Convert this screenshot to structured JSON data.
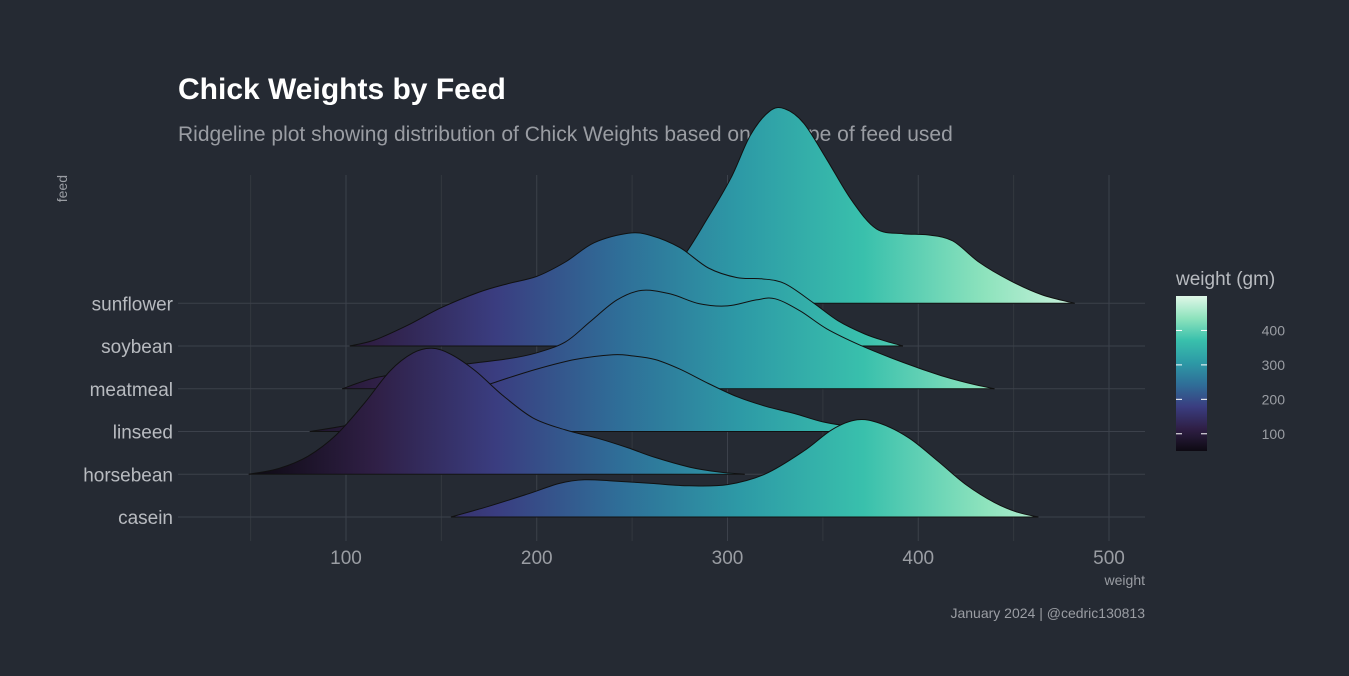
{
  "chart_data": {
    "type": "ridgeline",
    "title": "Chick Weights by Feed",
    "subtitle": "Ridgeline plot showing distribution of Chick Weights based on the type of feed used",
    "caption": "January 2024 | @cedric130813",
    "xlabel": "weight",
    "ylabel": "feed",
    "xlim": [
      10,
      520
    ],
    "x_ticks": [
      100,
      200,
      300,
      400,
      500
    ],
    "grid": true,
    "legend": {
      "title": "weight (gm)",
      "position": "right",
      "ticks": [
        100,
        200,
        300,
        400
      ],
      "range": [
        50,
        500
      ],
      "colors": [
        "#0d0a12",
        "#2f1f45",
        "#3a3d80",
        "#2f6e98",
        "#2d9aa6",
        "#39c0ac",
        "#8ee3bd",
        "#e0f7e8"
      ]
    },
    "categories": [
      "casein",
      "horsebean",
      "linseed",
      "meatmeal",
      "soybean",
      "sunflower"
    ],
    "series": [
      {
        "name": "casein",
        "range": [
          155,
          463
        ],
        "points": [
          [
            155,
            0
          ],
          [
            175,
            0.09
          ],
          [
            195,
            0.19
          ],
          [
            212,
            0.28
          ],
          [
            225,
            0.31
          ],
          [
            240,
            0.3
          ],
          [
            260,
            0.28
          ],
          [
            280,
            0.26
          ],
          [
            300,
            0.27
          ],
          [
            320,
            0.36
          ],
          [
            340,
            0.55
          ],
          [
            355,
            0.73
          ],
          [
            368,
            0.81
          ],
          [
            380,
            0.78
          ],
          [
            395,
            0.66
          ],
          [
            410,
            0.47
          ],
          [
            425,
            0.27
          ],
          [
            440,
            0.12
          ],
          [
            452,
            0.04
          ],
          [
            463,
            0
          ]
        ]
      },
      {
        "name": "horsebean",
        "range": [
          49,
          309
        ],
        "points": [
          [
            49,
            0
          ],
          [
            65,
            0.05
          ],
          [
            80,
            0.15
          ],
          [
            95,
            0.33
          ],
          [
            110,
            0.6
          ],
          [
            123,
            0.86
          ],
          [
            135,
            1.01
          ],
          [
            145,
            1.05
          ],
          [
            155,
            1.0
          ],
          [
            168,
            0.86
          ],
          [
            182,
            0.66
          ],
          [
            198,
            0.47
          ],
          [
            215,
            0.37
          ],
          [
            232,
            0.3
          ],
          [
            248,
            0.22
          ],
          [
            262,
            0.14
          ],
          [
            280,
            0.06
          ],
          [
            295,
            0.02
          ],
          [
            309,
            0
          ]
        ]
      },
      {
        "name": "linseed",
        "range": [
          81,
          380
        ],
        "points": [
          [
            81,
            0
          ],
          [
            100,
            0.05
          ],
          [
            120,
            0.12
          ],
          [
            140,
            0.2
          ],
          [
            160,
            0.31
          ],
          [
            180,
            0.42
          ],
          [
            200,
            0.52
          ],
          [
            220,
            0.6
          ],
          [
            240,
            0.64
          ],
          [
            250,
            0.63
          ],
          [
            262,
            0.6
          ],
          [
            275,
            0.52
          ],
          [
            290,
            0.4
          ],
          [
            305,
            0.29
          ],
          [
            320,
            0.21
          ],
          [
            335,
            0.15
          ],
          [
            350,
            0.08
          ],
          [
            365,
            0.04
          ],
          [
            380,
            0
          ]
        ]
      },
      {
        "name": "meatmeal",
        "range": [
          98,
          440
        ],
        "points": [
          [
            98,
            0
          ],
          [
            115,
            0.09
          ],
          [
            135,
            0.14
          ],
          [
            160,
            0.2
          ],
          [
            185,
            0.25
          ],
          [
            200,
            0.3
          ],
          [
            215,
            0.39
          ],
          [
            228,
            0.56
          ],
          [
            242,
            0.74
          ],
          [
            255,
            0.82
          ],
          [
            270,
            0.79
          ],
          [
            285,
            0.71
          ],
          [
            300,
            0.69
          ],
          [
            315,
            0.74
          ],
          [
            325,
            0.75
          ],
          [
            338,
            0.65
          ],
          [
            352,
            0.5
          ],
          [
            370,
            0.36
          ],
          [
            392,
            0.22
          ],
          [
            412,
            0.11
          ],
          [
            428,
            0.04
          ],
          [
            440,
            0
          ]
        ]
      },
      {
        "name": "soybean",
        "range": [
          102,
          392
        ],
        "points": [
          [
            102,
            0
          ],
          [
            115,
            0.05
          ],
          [
            132,
            0.17
          ],
          [
            150,
            0.32
          ],
          [
            170,
            0.45
          ],
          [
            185,
            0.52
          ],
          [
            200,
            0.58
          ],
          [
            215,
            0.7
          ],
          [
            230,
            0.86
          ],
          [
            248,
            0.94
          ],
          [
            260,
            0.92
          ],
          [
            275,
            0.82
          ],
          [
            290,
            0.65
          ],
          [
            305,
            0.57
          ],
          [
            318,
            0.56
          ],
          [
            330,
            0.52
          ],
          [
            345,
            0.36
          ],
          [
            358,
            0.21
          ],
          [
            372,
            0.1
          ],
          [
            383,
            0.04
          ],
          [
            392,
            0
          ]
        ]
      },
      {
        "name": "sunflower",
        "range": [
          225,
          482
        ],
        "points": [
          [
            225,
            0
          ],
          [
            235,
            0.04
          ],
          [
            250,
            0.12
          ],
          [
            262,
            0.2
          ],
          [
            275,
            0.35
          ],
          [
            290,
            0.72
          ],
          [
            302,
            1.05
          ],
          [
            312,
            1.4
          ],
          [
            322,
            1.6
          ],
          [
            330,
            1.62
          ],
          [
            340,
            1.5
          ],
          [
            352,
            1.2
          ],
          [
            365,
            0.86
          ],
          [
            378,
            0.62
          ],
          [
            392,
            0.58
          ],
          [
            405,
            0.57
          ],
          [
            418,
            0.52
          ],
          [
            432,
            0.34
          ],
          [
            448,
            0.19
          ],
          [
            465,
            0.07
          ],
          [
            482,
            0
          ]
        ]
      }
    ]
  }
}
